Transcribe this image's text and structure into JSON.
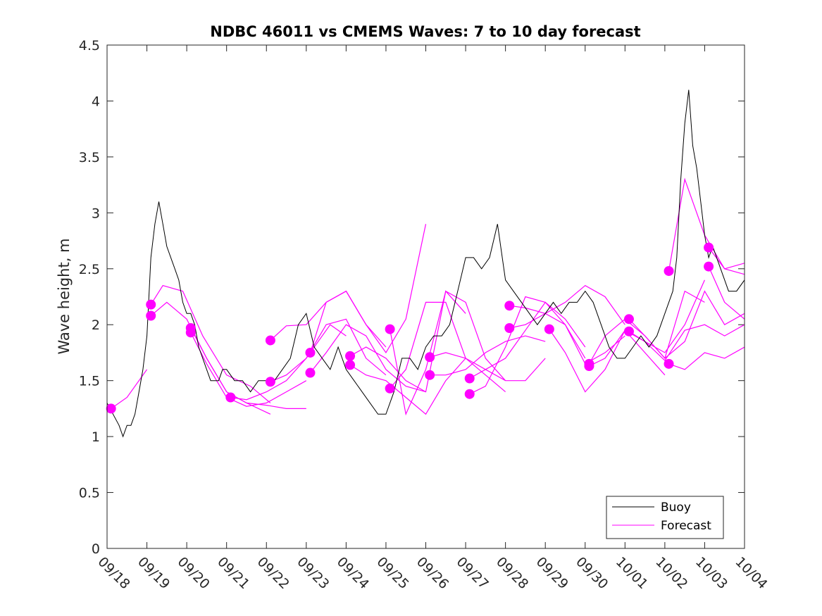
{
  "chart_data": {
    "type": "line",
    "title": "NDBC 46011 vs CMEMS Waves: 7 to 10 day forecast",
    "xlabel": "",
    "ylabel": "Wave height, m",
    "xlim": [
      0,
      16
    ],
    "ylim": [
      0,
      4.5
    ],
    "yticks": [
      0,
      0.5,
      1,
      1.5,
      2,
      2.5,
      3,
      3.5,
      4,
      4.5
    ],
    "ytick_labels": [
      "0",
      "0.5",
      "1",
      "1.5",
      "2",
      "2.5",
      "3",
      "3.5",
      "4",
      "4.5"
    ],
    "xticks": [
      0,
      1,
      2,
      3,
      4,
      5,
      6,
      7,
      8,
      9,
      10,
      11,
      12,
      13,
      14,
      15,
      16
    ],
    "xtick_labels": [
      "09/18",
      "09/19",
      "09/20",
      "09/21",
      "09/22",
      "09/23",
      "09/24",
      "09/25",
      "09/26",
      "09/27",
      "09/28",
      "09/29",
      "09/30",
      "10/01",
      "10/02",
      "10/03",
      "10/04"
    ],
    "grid": false,
    "legend": {
      "position": "bottom-right",
      "entries": [
        {
          "label": "Buoy",
          "color": "#000000"
        },
        {
          "label": "Forecast",
          "color": "#ff00ff"
        }
      ]
    },
    "buoy_color": "#000000",
    "forecast_color": "#ff00ff",
    "buoy": {
      "x": [
        0,
        0.15,
        0.3,
        0.4,
        0.5,
        0.6,
        0.7,
        0.8,
        0.9,
        1.0,
        1.1,
        1.2,
        1.3,
        1.4,
        1.5,
        1.6,
        1.7,
        1.8,
        1.9,
        2.0,
        2.1,
        2.2,
        2.3,
        2.4,
        2.5,
        2.6,
        2.7,
        2.8,
        2.9,
        3.0,
        3.2,
        3.4,
        3.6,
        3.8,
        4.0,
        4.2,
        4.4,
        4.6,
        4.8,
        5.0,
        5.2,
        5.4,
        5.6,
        5.8,
        6.0,
        6.2,
        6.4,
        6.6,
        6.8,
        7.0,
        7.2,
        7.4,
        7.6,
        7.8,
        8.0,
        8.2,
        8.4,
        8.6,
        8.8,
        9.0,
        9.2,
        9.4,
        9.6,
        9.8,
        10.0,
        10.2,
        10.4,
        10.6,
        10.8,
        11.0,
        11.2,
        11.4,
        11.6,
        11.8,
        12.0,
        12.2,
        12.4,
        12.6,
        12.8,
        13.0,
        13.2,
        13.4,
        13.6,
        13.8,
        14.0,
        14.2,
        14.3,
        14.4,
        14.5,
        14.6,
        14.7,
        14.8,
        14.9,
        15.0,
        15.1,
        15.2,
        15.4,
        15.6,
        15.8,
        16.0
      ],
      "y": [
        1.3,
        1.2,
        1.1,
        1.0,
        1.1,
        1.1,
        1.2,
        1.4,
        1.6,
        1.9,
        2.6,
        2.9,
        3.1,
        2.9,
        2.7,
        2.6,
        2.5,
        2.4,
        2.2,
        2.1,
        2.1,
        2.0,
        1.8,
        1.7,
        1.6,
        1.5,
        1.5,
        1.5,
        1.6,
        1.6,
        1.5,
        1.5,
        1.4,
        1.5,
        1.5,
        1.5,
        1.6,
        1.7,
        2.0,
        2.1,
        1.8,
        1.7,
        1.6,
        1.8,
        1.6,
        1.5,
        1.4,
        1.3,
        1.2,
        1.2,
        1.4,
        1.7,
        1.7,
        1.6,
        1.8,
        1.9,
        1.9,
        2.0,
        2.3,
        2.6,
        2.6,
        2.5,
        2.6,
        2.9,
        2.4,
        2.3,
        2.2,
        2.1,
        2.0,
        2.1,
        2.2,
        2.1,
        2.2,
        2.2,
        2.3,
        2.2,
        2.0,
        1.8,
        1.7,
        1.7,
        1.8,
        1.9,
        1.8,
        1.9,
        2.1,
        2.3,
        2.6,
        3.3,
        3.8,
        4.1,
        3.6,
        3.4,
        3.1,
        2.8,
        2.6,
        2.7,
        2.5,
        2.3,
        2.3,
        2.4
      ]
    },
    "forecasts": [
      {
        "x": [
          0.1,
          0.5,
          1.0
        ],
        "y": [
          1.25,
          1.35,
          1.6
        ]
      },
      {
        "x": [
          1.1,
          1.5,
          2.0,
          2.5,
          3.0,
          3.5,
          4.1
        ],
        "y": [
          2.08,
          2.2,
          2.05,
          1.7,
          1.4,
          1.3,
          1.2
        ]
      },
      {
        "x": [
          1.1,
          1.4,
          1.9,
          2.4,
          3.0,
          3.6,
          4.1
        ],
        "y": [
          2.18,
          2.35,
          2.3,
          1.9,
          1.55,
          1.45,
          1.3
        ]
      },
      {
        "x": [
          2.1,
          2.5,
          3.0,
          3.5,
          4.0,
          4.5,
          5.0
        ],
        "y": [
          1.97,
          1.7,
          1.4,
          1.3,
          1.28,
          1.25,
          1.25
        ]
      },
      {
        "x": [
          2.1,
          2.5,
          3.0,
          3.5,
          4.0,
          4.5,
          5.0
        ],
        "y": [
          1.93,
          1.65,
          1.35,
          1.27,
          1.3,
          1.4,
          1.5
        ]
      },
      {
        "x": [
          3.1,
          3.5,
          4.0,
          4.5,
          5.0,
          5.6,
          6.0
        ],
        "y": [
          1.35,
          1.33,
          1.4,
          1.5,
          1.7,
          2.0,
          1.9
        ]
      },
      {
        "x": [
          4.1,
          4.5,
          5.0,
          5.5,
          6.0,
          6.5,
          7.0
        ],
        "y": [
          1.86,
          1.99,
          2.0,
          2.2,
          2.3,
          2.0,
          1.8
        ]
      },
      {
        "x": [
          4.1,
          4.5,
          5.0,
          5.5,
          6.0,
          6.5,
          7.0
        ],
        "y": [
          1.49,
          1.55,
          1.7,
          2.0,
          2.05,
          1.7,
          1.55
        ]
      },
      {
        "x": [
          5.1,
          5.5,
          6.0,
          6.5,
          7.0,
          7.5,
          8.0
        ],
        "y": [
          1.75,
          2.2,
          2.3,
          2.0,
          1.75,
          2.05,
          2.9
        ]
      },
      {
        "x": [
          5.1,
          5.5,
          6.0,
          6.5,
          7.0,
          7.5,
          8.0
        ],
        "y": [
          1.57,
          1.75,
          2.0,
          1.9,
          1.6,
          1.45,
          1.4
        ]
      },
      {
        "x": [
          6.1,
          6.5,
          7.0,
          7.5,
          8.0,
          8.5,
          9.0
        ],
        "y": [
          1.72,
          1.8,
          1.7,
          1.5,
          1.4,
          2.3,
          2.1
        ]
      },
      {
        "x": [
          6.1,
          6.5,
          7.0,
          7.5,
          8.0,
          8.5,
          9.0
        ],
        "y": [
          1.64,
          1.55,
          1.5,
          1.35,
          1.2,
          1.5,
          1.7
        ]
      },
      {
        "x": [
          7.1,
          7.5,
          8.0,
          8.5,
          9.0,
          9.5,
          10.0
        ],
        "y": [
          1.96,
          1.2,
          1.6,
          2.3,
          2.2,
          1.7,
          1.5
        ]
      },
      {
        "x": [
          7.1,
          7.5,
          8.0,
          8.5,
          9.0,
          9.5,
          10.0
        ],
        "y": [
          1.43,
          1.6,
          2.2,
          2.2,
          1.7,
          1.55,
          1.4
        ]
      },
      {
        "x": [
          8.1,
          8.5,
          9.0,
          9.5,
          10.0,
          10.5,
          11.0
        ],
        "y": [
          1.71,
          1.75,
          1.7,
          1.6,
          1.5,
          1.5,
          1.7
        ]
      },
      {
        "x": [
          8.1,
          8.5,
          9.0,
          9.5,
          10.0,
          10.5,
          11.0
        ],
        "y": [
          1.55,
          1.55,
          1.6,
          1.75,
          1.85,
          1.9,
          1.85
        ]
      },
      {
        "x": [
          9.1,
          9.5,
          10.0,
          10.5,
          11.0,
          11.5,
          12.0
        ],
        "y": [
          1.52,
          1.6,
          1.7,
          1.95,
          2.2,
          2.0,
          1.7
        ]
      },
      {
        "x": [
          9.1,
          9.5,
          10.0,
          10.5,
          11.0,
          11.5,
          12.0
        ],
        "y": [
          1.38,
          1.45,
          1.8,
          2.25,
          2.2,
          2.05,
          1.8
        ]
      },
      {
        "x": [
          10.1,
          10.5,
          11.0,
          11.5,
          12.0,
          12.5,
          13.0
        ],
        "y": [
          2.17,
          2.15,
          2.1,
          2.2,
          2.35,
          2.25,
          2.0
        ]
      },
      {
        "x": [
          10.1,
          10.5,
          11.0,
          11.5,
          12.0,
          12.5,
          13.0
        ],
        "y": [
          1.97,
          2.0,
          2.1,
          2.0,
          1.65,
          1.75,
          1.9
        ]
      },
      {
        "x": [
          11.1,
          11.5,
          12.0,
          12.5,
          13.0,
          13.5,
          14.0
        ],
        "y": [
          1.96,
          1.75,
          1.4,
          1.6,
          1.95,
          1.75,
          1.55
        ]
      },
      {
        "x": [
          12.1,
          12.5,
          13.0,
          13.5,
          14.0,
          14.5,
          15.0
        ],
        "y": [
          1.65,
          1.9,
          2.05,
          1.9,
          1.7,
          2.3,
          2.2
        ]
      },
      {
        "x": [
          12.1,
          12.5,
          13.0,
          13.5,
          14.0,
          14.5,
          15.0
        ],
        "y": [
          1.63,
          1.7,
          1.95,
          1.85,
          1.75,
          2.0,
          2.4
        ]
      },
      {
        "x": [
          13.1,
          13.5,
          14.0,
          14.5,
          15.0,
          15.5,
          16.0
        ],
        "y": [
          2.05,
          1.9,
          1.7,
          1.85,
          2.3,
          2.0,
          2.1
        ]
      },
      {
        "x": [
          13.1,
          13.5,
          14.0,
          14.5,
          15.0,
          15.5,
          16.0
        ],
        "y": [
          1.94,
          1.85,
          1.68,
          1.95,
          2.0,
          1.9,
          2.0
        ]
      },
      {
        "x": [
          14.1,
          14.5,
          15.0,
          15.5,
          16.0
        ],
        "y": [
          2.48,
          3.3,
          2.8,
          2.5,
          2.55
        ]
      },
      {
        "x": [
          14.1,
          14.5,
          15.0,
          15.5,
          16.0
        ],
        "y": [
          1.65,
          1.6,
          1.75,
          1.7,
          1.8
        ]
      },
      {
        "x": [
          15.1,
          15.5,
          16.0
        ],
        "y": [
          2.69,
          2.5,
          2.45
        ]
      },
      {
        "x": [
          15.1,
          15.5,
          16.0
        ],
        "y": [
          2.52,
          2.2,
          2.05
        ]
      }
    ]
  }
}
